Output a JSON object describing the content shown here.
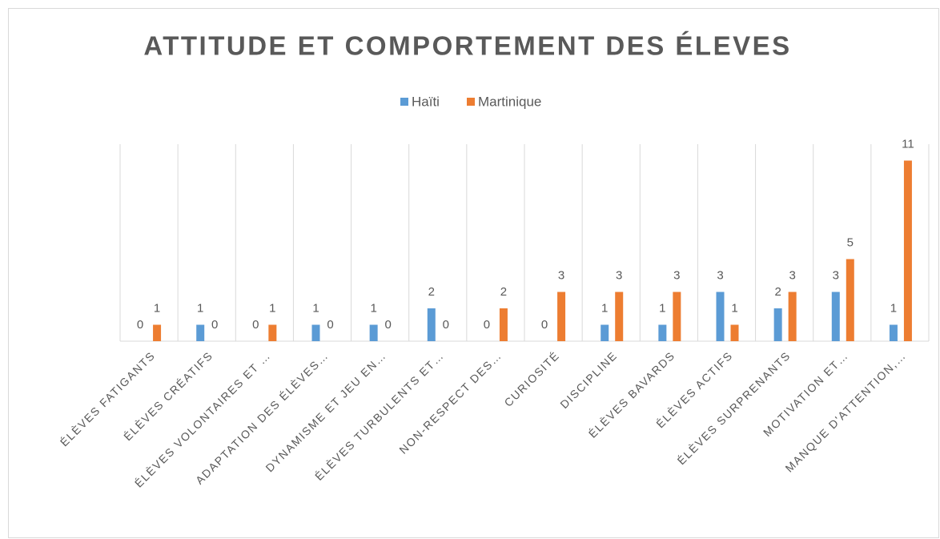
{
  "chart_data": {
    "type": "bar",
    "title": "ATTITUDE ET COMPORTEMENT DES ÉLEVES",
    "categories": [
      "ÉLÈVES FATIGANTS",
      "ÉLÈVES CRÉATIFS",
      "ÉLÈVES VOLONTAIRES ET …",
      "ADAPTATION DES ÉLÈVES…",
      "DYNAMISME ET JEU EN…",
      "ÉLÈVES TURBULENTS ET…",
      "NON-RESPECT DES…",
      "CURIOSITÉ",
      "DISCIPLINE",
      "ÉLÈVES BAVARDS",
      "ÉLÈVES ACTIFS",
      "ÉLÈVES SURPRENANTS",
      "MOTIVATION ET…",
      "MANQUE D'ATTENTION,…"
    ],
    "series": [
      {
        "name": "Haïti",
        "color": "#5b9bd5",
        "values": [
          0,
          1,
          0,
          1,
          1,
          2,
          0,
          0,
          1,
          1,
          3,
          2,
          3,
          1
        ]
      },
      {
        "name": "Martinique",
        "color": "#ed7d31",
        "values": [
          1,
          0,
          1,
          0,
          0,
          0,
          2,
          3,
          3,
          3,
          1,
          3,
          5,
          11
        ]
      }
    ],
    "ylim": [
      0,
      12
    ],
    "legend": "top",
    "grid": true
  }
}
